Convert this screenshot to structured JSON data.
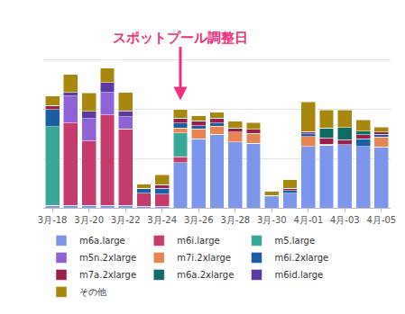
{
  "chart_data": {
    "type": "bar",
    "stacked": true,
    "grid": true,
    "legend": "bottom",
    "tick_labels": "x",
    "ylim": [
      0,
      4
    ],
    "yticks": [
      0,
      1,
      2,
      3,
      4
    ],
    "categories": [
      "3月-18",
      null,
      "3月-20",
      null,
      "3月-22",
      null,
      "3月-24",
      null,
      "3月-26",
      null,
      "3月-28",
      null,
      "3月-30",
      null,
      "4月-01",
      null,
      "4月-03",
      null,
      "4月-05"
    ],
    "annotations": [
      {
        "text": "スポットプール調整日",
        "index": 7,
        "color": "#f0307a"
      }
    ],
    "series": [
      {
        "name": "m6a.large",
        "color": "#7b96ea",
        "values": [
          0.05,
          0.05,
          0.05,
          0.05,
          0.05,
          0.03,
          0.03,
          0.92,
          1.4,
          1.49,
          1.34,
          1.31,
          0.22,
          0.3,
          1.25,
          1.27,
          1.28,
          1.25,
          1.24
        ]
      },
      {
        "name": "m6i.large",
        "color": "#c53b6c",
        "values": [
          0,
          1.67,
          1.31,
          1.84,
          1.55,
          0.27,
          0.25,
          0.12,
          0,
          0,
          0,
          0,
          0,
          0,
          0,
          0,
          0,
          0,
          0
        ]
      },
      {
        "name": "m5.large",
        "color": "#3aa898",
        "values": [
          1.6,
          0,
          0,
          0,
          0,
          0,
          0,
          0.48,
          0,
          0,
          0,
          0,
          0,
          0,
          0,
          0,
          0,
          0,
          0
        ]
      },
      {
        "name": "m5n.2xlarge",
        "color": "#9062d8",
        "values": [
          0,
          0.55,
          0.45,
          0.45,
          0.25,
          0,
          0,
          0,
          0,
          0,
          0,
          0,
          0,
          0,
          0,
          0,
          0,
          0,
          0
        ]
      },
      {
        "name": "m7i.2xlarge",
        "color": "#e8844f",
        "values": [
          0,
          0,
          0,
          0,
          0,
          0,
          0,
          0.1,
          0.2,
          0.17,
          0.2,
          0.2,
          0,
          0,
          0.2,
          0,
          0,
          0,
          0.2
        ]
      },
      {
        "name": "m6i.2xlarge",
        "color": "#1b5fa3",
        "values": [
          0.35,
          0,
          0,
          0,
          0,
          0.1,
          0.12,
          0.1,
          0.07,
          0.06,
          0,
          0,
          0.03,
          0.05,
          0.05,
          0.02,
          0,
          0.15,
          0.05
        ]
      },
      {
        "name": "m7a.2xlarge",
        "color": "#9c1f4b",
        "values": [
          0.08,
          0,
          0,
          0,
          0,
          0,
          0.07,
          0.1,
          0.1,
          0.1,
          0.08,
          0.08,
          0,
          0.05,
          0.05,
          0.13,
          0.1,
          0.08,
          0.05
        ]
      },
      {
        "name": "m6a.2xlarge",
        "color": "#0f6b66",
        "values": [
          0,
          0,
          0,
          0,
          0,
          0,
          0,
          0,
          0,
          0,
          0,
          0,
          0,
          0,
          0,
          0.2,
          0.25,
          0.08,
          0
        ]
      },
      {
        "name": "m6id.large",
        "color": "#5b3ba3",
        "values": [
          0,
          0.07,
          0.15,
          0.2,
          0.12,
          0,
          0,
          0,
          0,
          0,
          0,
          0,
          0,
          0,
          0,
          0,
          0,
          0,
          0
        ]
      },
      {
        "name": "その他",
        "color": "#a8870c",
        "values": [
          0.19,
          0.37,
          0.37,
          0.3,
          0.37,
          0.08,
          0.2,
          0.18,
          0.1,
          0.12,
          0.14,
          0.14,
          0.08,
          0.17,
          0.6,
          0.37,
          0.36,
          0.23,
          0.1
        ]
      }
    ]
  }
}
